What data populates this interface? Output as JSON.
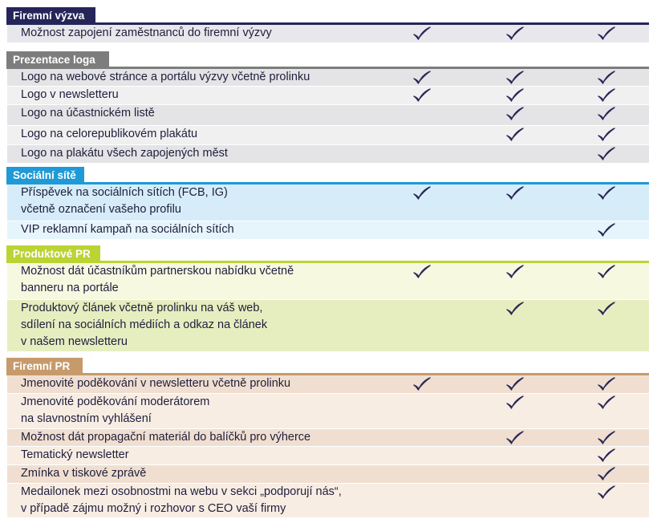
{
  "colors": {
    "check": "#2a2858",
    "firemni_vyzva": {
      "head": "#25255a",
      "row_a": "#e7e7ec",
      "row_b": "#f1f1f4"
    },
    "prezentace": {
      "head": "#7d7d7d",
      "row_a": "#e4e4e6",
      "row_b": "#f0f0f1"
    },
    "socialni": {
      "head": "#1f9ad6",
      "row_a": "#d6edf9",
      "row_b": "#e6f4fb"
    },
    "produktove": {
      "head": "#bcd334",
      "row_a": "#f6f8e0",
      "row_b": "#e6eec0"
    },
    "firemni_pr": {
      "head": "#c79a6c",
      "row_a": "#f0dfd0",
      "row_b": "#f8ede3"
    }
  },
  "sections": [
    {
      "key": "firemni_vyzva",
      "title": "Firemní výzva",
      "rows": [
        {
          "lines": [
            "Možnost zapojení zaměstnanců do firemní výzvy"
          ],
          "checks": [
            true,
            true,
            true
          ]
        }
      ]
    },
    {
      "key": "prezentace",
      "title": "Prezentace loga",
      "rows": [
        {
          "lines": [
            "Logo na webové stránce a portálu výzvy včetně prolinku"
          ],
          "checks": [
            true,
            true,
            true
          ]
        },
        {
          "lines": [
            "Logo v newsletteru"
          ],
          "checks": [
            true,
            true,
            true
          ]
        },
        {
          "lines": [
            "Logo na účastnickém listě"
          ],
          "checks": [
            false,
            true,
            true
          ]
        },
        {
          "lines": [
            "Logo na celorepublikovém plakátu"
          ],
          "checks": [
            false,
            true,
            true
          ]
        },
        {
          "lines": [
            "Logo na plakátu všech zapojených měst"
          ],
          "checks": [
            false,
            false,
            true
          ]
        }
      ]
    },
    {
      "key": "socialni",
      "title": "Sociální sítě",
      "rows": [
        {
          "lines": [
            "Příspěvek na sociálních sítích (FCB, IG)",
            "včetně označení vašeho profilu"
          ],
          "checks": [
            true,
            true,
            true
          ]
        },
        {
          "lines": [
            "VIP reklamní kampaň na sociálních sítích"
          ],
          "checks": [
            false,
            false,
            true
          ]
        }
      ]
    },
    {
      "key": "produktove",
      "title": "Produktové PR",
      "rows": [
        {
          "lines": [
            "Možnost dát účastníkům partnerskou nabídku včetně",
            "banneru na portále"
          ],
          "checks": [
            true,
            true,
            true
          ]
        },
        {
          "lines": [
            "Produktový článek včetně prolinku na váš web,",
            "sdílení na sociálních médiích a odkaz na článek",
            "v našem newsletteru"
          ],
          "checks": [
            false,
            true,
            true
          ]
        }
      ]
    },
    {
      "key": "firemni_pr",
      "title": "Firemní PR",
      "rows": [
        {
          "lines": [
            "Jmenovité poděkování v newsletteru včetně prolinku"
          ],
          "checks": [
            true,
            true,
            true
          ]
        },
        {
          "lines": [
            "Jmenovité poděkování moderátorem",
            "na slavnostním vyhlášení"
          ],
          "checks": [
            false,
            true,
            true
          ]
        },
        {
          "lines": [
            "Možnost dát propagační materiál do balíčků pro výherce"
          ],
          "checks": [
            false,
            true,
            true
          ]
        },
        {
          "lines": [
            "Tematický newsletter"
          ],
          "checks": [
            false,
            false,
            true
          ]
        },
        {
          "lines": [
            "Zmínka v tiskové zprávě"
          ],
          "checks": [
            false,
            false,
            true
          ]
        },
        {
          "lines": [
            "Medailonek mezi osobnostmi na webu v sekci „podporují nás“,",
            "v případě zájmu možný i rozhovor s CEO vaší firmy"
          ],
          "checks": [
            false,
            false,
            true
          ]
        }
      ]
    }
  ]
}
